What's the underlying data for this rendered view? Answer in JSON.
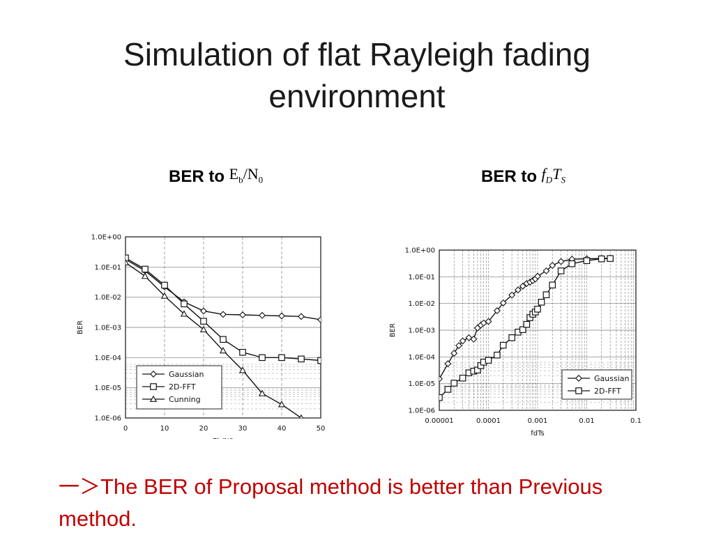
{
  "slide": {
    "title_line1": "Simulation of flat Rayleigh fading",
    "title_line2": "environment",
    "left_heading": "BER to",
    "right_heading": "BER to",
    "conclusion_arrow": "一＞",
    "conclusion_text": "The BER of Proposal method is better than Previous method."
  },
  "chart_data": [
    {
      "type": "line",
      "xlabel": "Eb/N0",
      "ylabel": "BER",
      "x_ticks": [
        "0",
        "10",
        "20",
        "30",
        "40",
        "50"
      ],
      "y_ticks": [
        "1.0E+00",
        "1.0E-01",
        "1.0E-02",
        "1.0E-03",
        "1.0E-04",
        "1.0E-05",
        "1.0E-06"
      ],
      "xlim": [
        0,
        50
      ],
      "ylim": [
        1e-06,
        1
      ],
      "y_scale": "log",
      "grid": true,
      "legend_position": "bottom-left",
      "series": [
        {
          "name": "Gaussian",
          "marker": "diamond",
          "x": [
            0,
            5,
            10,
            15,
            20,
            25,
            30,
            35,
            40,
            45,
            50
          ],
          "y": [
            0.18,
            0.075,
            0.022,
            0.007,
            0.0035,
            0.0027,
            0.0026,
            0.0025,
            0.0024,
            0.0023,
            0.0018
          ]
        },
        {
          "name": "2D-FFT",
          "marker": "square",
          "x": [
            0,
            5,
            10,
            15,
            20,
            25,
            30,
            35,
            40,
            45,
            50
          ],
          "y": [
            0.2,
            0.085,
            0.025,
            0.006,
            0.0016,
            0.0004,
            0.00015,
            0.0001,
            0.0001,
            9e-05,
            8e-05
          ]
        },
        {
          "name": "Cunning",
          "marker": "triangle",
          "x": [
            0,
            5,
            10,
            15,
            20,
            25,
            30,
            35,
            40,
            45
          ],
          "y": [
            0.14,
            0.05,
            0.011,
            0.0028,
            0.00085,
            0.00017,
            3.8e-05,
            6.5e-06,
            2.8e-06,
            1e-06
          ]
        }
      ]
    },
    {
      "type": "line",
      "xlabel": "fdTs",
      "ylabel": "BER",
      "x_ticks": [
        "0.00001",
        "0.0001",
        "0.001",
        "0.01",
        "0.1"
      ],
      "y_ticks": [
        "1.0E+00",
        "1.0E-01",
        "1.0E-02",
        "1.0E-03",
        "1.0E-04",
        "1.0E-05",
        "1.0E-06"
      ],
      "xlim": [
        1e-05,
        0.1
      ],
      "ylim": [
        1e-06,
        1
      ],
      "x_scale": "log",
      "y_scale": "log",
      "grid": true,
      "legend_position": "bottom-right",
      "series": [
        {
          "name": "Gaussian",
          "marker": "diamond",
          "x": [
            1e-05,
            1.5e-05,
            2e-05,
            2.5e-05,
            3e-05,
            4e-05,
            5e-05,
            6e-05,
            7e-05,
            8e-05,
            0.0001,
            0.00015,
            0.0002,
            0.0003,
            0.0004,
            0.0005,
            0.0006,
            0.0007,
            0.0008,
            0.0009,
            0.001,
            0.0015,
            0.002,
            0.003,
            0.005,
            0.01,
            0.02,
            0.03
          ],
          "y": [
            1.5e-05,
            5.56e-05,
            0.000137,
            0.000264,
            0.000396,
            0.000523,
            0.000461,
            0.00121,
            0.00154,
            0.00186,
            0.00212,
            0.00536,
            0.0105,
            0.0207,
            0.0322,
            0.0445,
            0.0561,
            0.0632,
            0.0722,
            0.0829,
            0.105,
            0.167,
            0.266,
            0.373,
            0.456,
            0.473,
            0.488,
            0.495
          ]
        },
        {
          "name": "2D-FFT",
          "marker": "square",
          "x": [
            1e-05,
            1.5e-05,
            2e-05,
            3e-05,
            4e-05,
            5e-05,
            6e-05,
            7e-05,
            8e-05,
            0.0001,
            0.00015,
            0.0002,
            0.0003,
            0.0004,
            0.0005,
            0.0006,
            0.0007,
            0.0008,
            0.0009,
            0.001,
            0.0012,
            0.0015,
            0.002,
            0.003,
            0.005,
            0.01,
            0.02,
            0.03
          ],
          "y": [
            3e-06,
            6.1e-06,
            1.04e-05,
            1.61e-05,
            2.53e-05,
            2.92e-05,
            3.21e-05,
            4.72e-05,
            6.37e-05,
            7.47e-05,
            0.000117,
            0.000273,
            0.000523,
            0.000847,
            0.00105,
            0.00165,
            0.00295,
            0.00398,
            0.00481,
            0.00614,
            0.0112,
            0.0212,
            0.0491,
            0.167,
            0.308,
            0.402,
            0.469,
            0.483
          ]
        }
      ]
    }
  ]
}
